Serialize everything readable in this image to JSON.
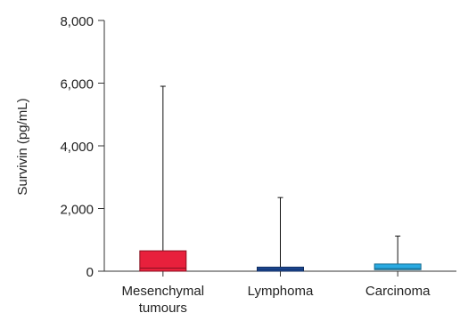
{
  "chart_data": {
    "type": "box",
    "ylabel": "Survivin (pg/mL)",
    "ylim": [
      0,
      8000
    ],
    "yticks": [
      0,
      2000,
      4000,
      6000,
      8000
    ],
    "ytick_labels": [
      "0",
      "2,000",
      "4,000",
      "6,000",
      "8,000"
    ],
    "grid": false,
    "categories": [
      {
        "label_lines": [
          "Mesenchymal",
          "tumours"
        ],
        "color": "#e8203c",
        "stroke": "#8a1020",
        "min": 0,
        "q1": 0,
        "median": 100,
        "q3": 650,
        "max": 5900
      },
      {
        "label_lines": [
          "Lymphoma"
        ],
        "color": "#1e4ea0",
        "stroke": "#0f2a5a",
        "min": 0,
        "q1": 0,
        "median": 60,
        "q3": 130,
        "max": 2350
      },
      {
        "label_lines": [
          "Carcinoma"
        ],
        "color": "#2aaae2",
        "stroke": "#146a8e",
        "min": 0,
        "q1": 50,
        "median": 80,
        "q3": 230,
        "max": 1120
      }
    ]
  }
}
